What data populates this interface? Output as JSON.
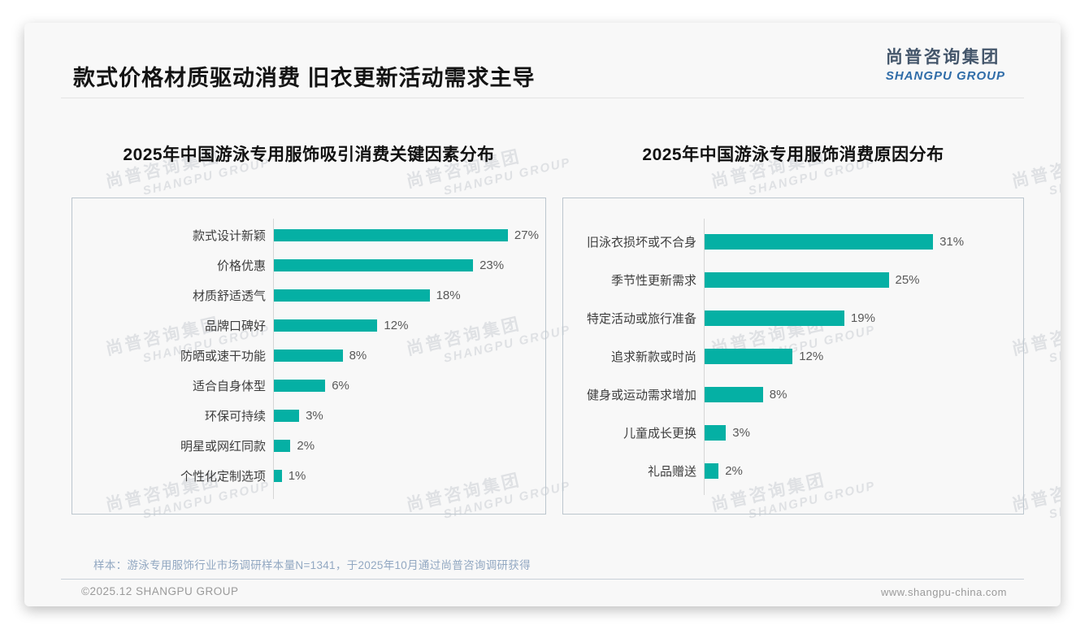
{
  "page": {
    "title": "款式价格材质驱动消费 旧衣更新活动需求主导",
    "logo": {
      "cn": "尚普咨询集团",
      "en": "SHANGPU GROUP"
    },
    "watermark": {
      "cn": "尚普咨询集团",
      "en": "SHANGPU GROUP"
    },
    "sample_note": "样本：游泳专用服饰行业市场调研样本量N=1341，于2025年10月通过尚普咨询调研获得",
    "footer": {
      "copyright": "©2025.12 SHANGPU GROUP",
      "website": "www.shangpu-china.com"
    }
  },
  "colors": {
    "bar": "#05b0a4",
    "logo_cn": "#44566b",
    "logo_en": "#2f6ca8",
    "note_blue": "#92a8c2",
    "title_black": "#141414"
  },
  "chart_data": [
    {
      "type": "bar",
      "orientation": "horizontal",
      "title": "2025年中国游泳专用服饰吸引消费关键因素分布",
      "categories": [
        "款式设计新颖",
        "价格优惠",
        "材质舒适透气",
        "品牌口碑好",
        "防晒或速干功能",
        "适合自身体型",
        "环保可持续",
        "明星或网红同款",
        "个性化定制选项"
      ],
      "values": [
        27,
        23,
        18,
        12,
        8,
        6,
        3,
        2,
        1
      ],
      "value_labels": [
        "27%",
        "23%",
        "18%",
        "12%",
        "8%",
        "6%",
        "3%",
        "2%",
        "1%"
      ],
      "unit": "%",
      "xlim": [
        0,
        30
      ],
      "grid": false,
      "legend": "none",
      "bar_color": "#05b0a4"
    },
    {
      "type": "bar",
      "orientation": "horizontal",
      "title": "2025年中国游泳专用服饰消费原因分布",
      "categories": [
        "旧泳衣损坏或不合身",
        "季节性更新需求",
        "特定活动或旅行准备",
        "追求新款或时尚",
        "健身或运动需求增加",
        "儿童成长更换",
        "礼品赠送"
      ],
      "values": [
        31,
        25,
        19,
        12,
        8,
        3,
        2
      ],
      "value_labels": [
        "31%",
        "25%",
        "19%",
        "12%",
        "8%",
        "3%",
        "2%"
      ],
      "unit": "%",
      "xlim": [
        0,
        42
      ],
      "grid": false,
      "legend": "none",
      "bar_color": "#05b0a4"
    }
  ]
}
